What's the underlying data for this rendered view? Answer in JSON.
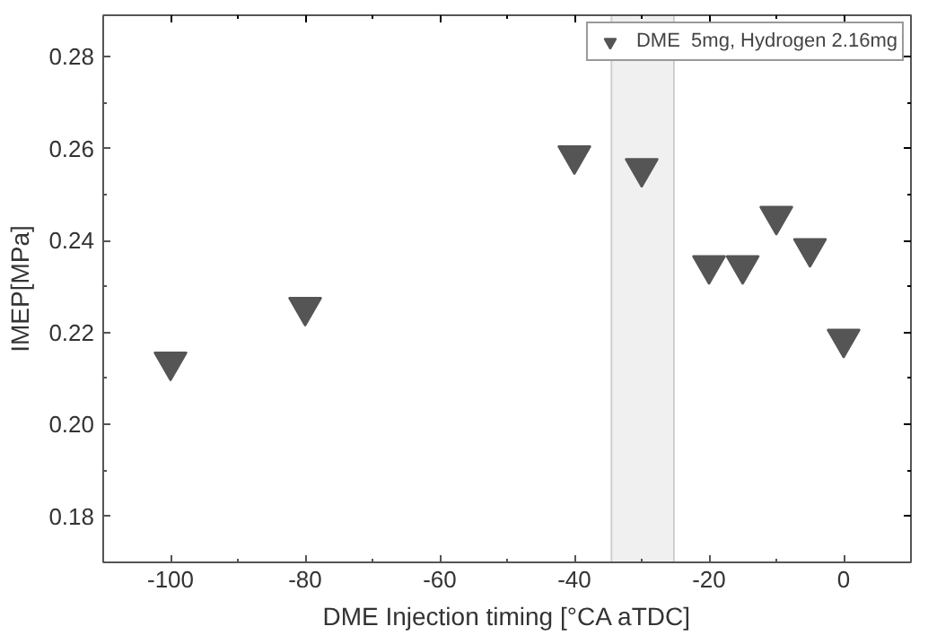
{
  "chart_data": {
    "type": "scatter",
    "xlabel": "DME Injection timing [°CA aTDC]",
    "ylabel": "IMEP[MPa]",
    "x": [
      -100,
      -80,
      -40,
      -30,
      -20,
      -15,
      -10,
      -5,
      0
    ],
    "series": [
      {
        "name": "DME  5mg, Hydrogen 2.16mg",
        "color": "#555555",
        "values": [
          0.2136,
          0.2255,
          0.2585,
          0.2557,
          0.2346,
          0.2346,
          0.2453,
          0.2383,
          0.2186
        ]
      }
    ],
    "xlim": [
      -110,
      10
    ],
    "ylim": [
      0.17,
      0.289
    ],
    "xticks": [
      -100,
      -80,
      -60,
      -40,
      -20,
      0
    ],
    "yticks": [
      {
        "value": 0.18,
        "label": "0.18"
      },
      {
        "value": 0.2,
        "label": "0.20"
      },
      {
        "value": 0.22,
        "label": "0.22"
      },
      {
        "value": 0.24,
        "label": "0.24"
      },
      {
        "value": 0.26,
        "label": "0.26"
      },
      {
        "value": 0.28,
        "label": "0.28"
      }
    ],
    "bands": [
      {
        "axis": "x",
        "from": -34.5,
        "to": -25.2,
        "color": "#f0f0f0"
      }
    ],
    "marker": "triangle",
    "legend": "top right",
    "grid": false
  }
}
